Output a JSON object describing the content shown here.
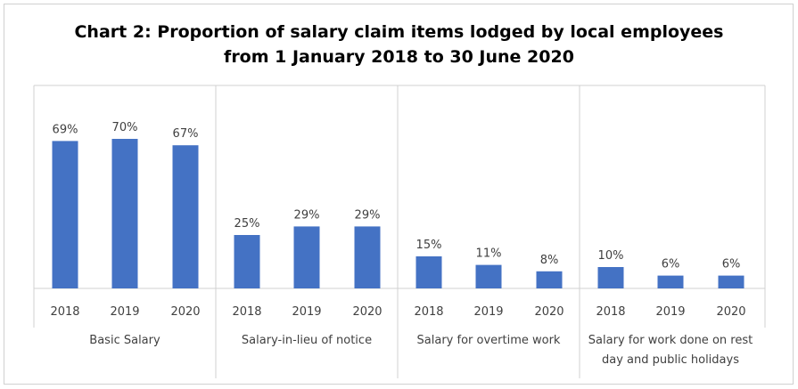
{
  "title_line1": "Chart 2: Proportion of salary claim items lodged by local employees",
  "title_line2": "from 1 January 2018 to 30 June 2020",
  "colors": {
    "bar": "#4472C4",
    "grid": "#d0d0d0",
    "text": "#404040"
  },
  "chart_data": {
    "type": "bar",
    "title": "Chart 2: Proportion of salary claim items lodged by local employees from 1 January 2018 to 30 June 2020",
    "ylim": [
      0,
      70
    ],
    "groups": [
      {
        "name": "Basic Salary",
        "name_lines": [
          "Basic Salary"
        ],
        "categories": [
          "2018",
          "2019",
          "2020"
        ],
        "values": [
          69,
          70,
          67
        ],
        "labels": [
          "69%",
          "70%",
          "67%"
        ]
      },
      {
        "name": "Salary-in-lieu of notice",
        "name_lines": [
          "Salary-in-lieu of notice"
        ],
        "categories": [
          "2018",
          "2019",
          "2020"
        ],
        "values": [
          25,
          29,
          29
        ],
        "labels": [
          "25%",
          "29%",
          "29%"
        ]
      },
      {
        "name": "Salary for overtime work",
        "name_lines": [
          "Salary for overtime work"
        ],
        "categories": [
          "2018",
          "2019",
          "2020"
        ],
        "values": [
          15,
          11,
          8
        ],
        "labels": [
          "15%",
          "11%",
          "8%"
        ]
      },
      {
        "name": "Salary for work done on rest day and public holidays",
        "name_lines": [
          "Salary for work done on rest",
          "day and public holidays"
        ],
        "categories": [
          "2018",
          "2019",
          "2020"
        ],
        "values": [
          10,
          6,
          6
        ],
        "labels": [
          "10%",
          "6%",
          "6%"
        ]
      }
    ]
  }
}
